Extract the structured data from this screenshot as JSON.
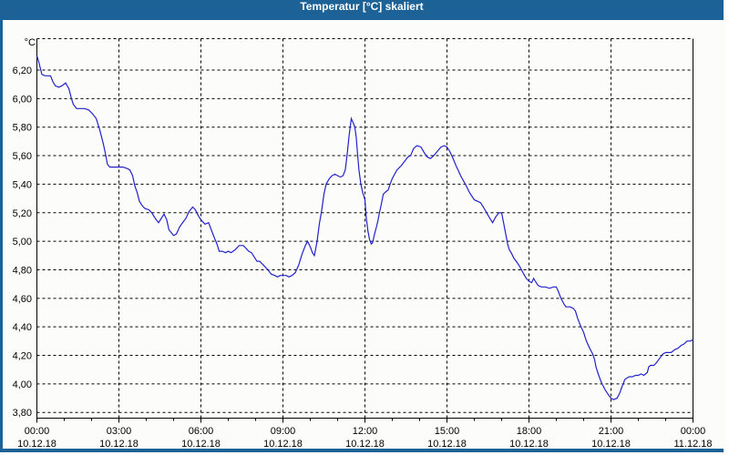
{
  "window": {
    "title": "Temperatur [°C] skaliert",
    "colors": {
      "title_bar": "#1d6296",
      "title_text": "#ffffff",
      "frame": "#1d6296",
      "content_bg": "#fcfdfa"
    }
  },
  "chart_data": {
    "type": "line",
    "title": "Temperatur [°C] skaliert",
    "ylabel": "°C",
    "xlabel": "",
    "grid": "dashed, horizontal and vertical, black",
    "legend": "none",
    "line_color": "#2222cc",
    "grid_color": "#000000",
    "axis_color": "#000000",
    "text_color": "#000000",
    "xlim": [
      0,
      24
    ],
    "ylim": [
      3.76,
      6.42
    ],
    "minor_x_tick_every_hours": 1,
    "y_ticks": [
      {
        "label": "6,20",
        "value": 6.2
      },
      {
        "label": "6,00",
        "value": 6.0
      },
      {
        "label": "5,80",
        "value": 5.8
      },
      {
        "label": "5,60",
        "value": 5.6
      },
      {
        "label": "5,40",
        "value": 5.4
      },
      {
        "label": "5,20",
        "value": 5.2
      },
      {
        "label": "5,00",
        "value": 5.0
      },
      {
        "label": "4,80",
        "value": 4.8
      },
      {
        "label": "4,60",
        "value": 4.6
      },
      {
        "label": "4,40",
        "value": 4.4
      },
      {
        "label": "4,20",
        "value": 4.2
      },
      {
        "label": "4,00",
        "value": 4.0
      },
      {
        "label": "3,80",
        "value": 3.8
      }
    ],
    "x_ticks": [
      {
        "hour": 0,
        "time": "00:00",
        "date": "10.12.18"
      },
      {
        "hour": 3,
        "time": "03:00",
        "date": "10.12.18"
      },
      {
        "hour": 6,
        "time": "06:00",
        "date": "10.12.18"
      },
      {
        "hour": 9,
        "time": "09:00",
        "date": "10.12.18"
      },
      {
        "hour": 12,
        "time": "12:00",
        "date": "10.12.18"
      },
      {
        "hour": 15,
        "time": "15:00",
        "date": "10.12.18"
      },
      {
        "hour": 18,
        "time": "18:00",
        "date": "10.12.18"
      },
      {
        "hour": 21,
        "time": "21:00",
        "date": "10.12.18"
      },
      {
        "hour": 24,
        "time": "00:00",
        "date": "11.12.18"
      }
    ],
    "series": [
      {
        "name": "Temperatur [°C]",
        "color": "#2222cc",
        "points": [
          [
            0,
            6.3
          ],
          [
            0.05,
            6.27
          ],
          [
            0.13,
            6.21
          ],
          [
            0.18,
            6.17
          ],
          [
            0.3,
            6.16
          ],
          [
            0.5,
            6.16
          ],
          [
            0.58,
            6.12
          ],
          [
            0.67,
            6.09
          ],
          [
            0.8,
            6.08
          ],
          [
            0.92,
            6.09
          ],
          [
            1.05,
            6.11
          ],
          [
            1.17,
            6.07
          ],
          [
            1.25,
            6.01
          ],
          [
            1.33,
            5.96
          ],
          [
            1.45,
            5.93
          ],
          [
            1.6,
            5.93
          ],
          [
            1.75,
            5.93
          ],
          [
            1.9,
            5.92
          ],
          [
            2.05,
            5.89
          ],
          [
            2.17,
            5.86
          ],
          [
            2.3,
            5.78
          ],
          [
            2.42,
            5.69
          ],
          [
            2.5,
            5.62
          ],
          [
            2.58,
            5.54
          ],
          [
            2.67,
            5.52
          ],
          [
            2.8,
            5.52
          ],
          [
            3,
            5.52
          ],
          [
            3.15,
            5.52
          ],
          [
            3.3,
            5.51
          ],
          [
            3.4,
            5.5
          ],
          [
            3.5,
            5.46
          ],
          [
            3.58,
            5.39
          ],
          [
            3.67,
            5.34
          ],
          [
            3.75,
            5.28
          ],
          [
            3.85,
            5.25
          ],
          [
            3.95,
            5.23
          ],
          [
            4.1,
            5.22
          ],
          [
            4.2,
            5.2
          ],
          [
            4.33,
            5.16
          ],
          [
            4.45,
            5.13
          ],
          [
            4.55,
            5.16
          ],
          [
            4.65,
            5.19
          ],
          [
            4.75,
            5.15
          ],
          [
            4.83,
            5.08
          ],
          [
            4.92,
            5.06
          ],
          [
            5,
            5.04
          ],
          [
            5.1,
            5.05
          ],
          [
            5.22,
            5.1
          ],
          [
            5.33,
            5.13
          ],
          [
            5.45,
            5.16
          ],
          [
            5.57,
            5.21
          ],
          [
            5.7,
            5.24
          ],
          [
            5.8,
            5.22
          ],
          [
            5.9,
            5.18
          ],
          [
            6,
            5.15
          ],
          [
            6.15,
            5.12
          ],
          [
            6.28,
            5.13
          ],
          [
            6.4,
            5.07
          ],
          [
            6.5,
            5.02
          ],
          [
            6.57,
            4.99
          ],
          [
            6.67,
            4.93
          ],
          [
            6.78,
            4.93
          ],
          [
            6.9,
            4.92
          ],
          [
            7,
            4.93
          ],
          [
            7.1,
            4.92
          ],
          [
            7.25,
            4.94
          ],
          [
            7.4,
            4.97
          ],
          [
            7.55,
            4.97
          ],
          [
            7.65,
            4.95
          ],
          [
            7.75,
            4.93
          ],
          [
            7.85,
            4.92
          ],
          [
            7.95,
            4.89
          ],
          [
            8.05,
            4.86
          ],
          [
            8.15,
            4.86
          ],
          [
            8.25,
            4.84
          ],
          [
            8.35,
            4.82
          ],
          [
            8.45,
            4.8
          ],
          [
            8.57,
            4.77
          ],
          [
            8.7,
            4.76
          ],
          [
            8.8,
            4.75
          ],
          [
            8.9,
            4.76
          ],
          [
            9,
            4.76
          ],
          [
            9.12,
            4.76
          ],
          [
            9.22,
            4.75
          ],
          [
            9.33,
            4.76
          ],
          [
            9.45,
            4.78
          ],
          [
            9.57,
            4.83
          ],
          [
            9.7,
            4.91
          ],
          [
            9.82,
            4.97
          ],
          [
            9.9,
            5
          ],
          [
            10,
            4.96
          ],
          [
            10.08,
            4.92
          ],
          [
            10.15,
            4.9
          ],
          [
            10.25,
            5
          ],
          [
            10.33,
            5.12
          ],
          [
            10.42,
            5.22
          ],
          [
            10.5,
            5.33
          ],
          [
            10.58,
            5.4
          ],
          [
            10.7,
            5.44
          ],
          [
            10.8,
            5.46
          ],
          [
            10.9,
            5.47
          ],
          [
            11,
            5.46
          ],
          [
            11.1,
            5.45
          ],
          [
            11.2,
            5.46
          ],
          [
            11.28,
            5.5
          ],
          [
            11.35,
            5.61
          ],
          [
            11.42,
            5.74
          ],
          [
            11.5,
            5.86
          ],
          [
            11.57,
            5.83
          ],
          [
            11.63,
            5.8
          ],
          [
            11.68,
            5.73
          ],
          [
            11.73,
            5.61
          ],
          [
            11.78,
            5.5
          ],
          [
            11.85,
            5.4
          ],
          [
            11.92,
            5.34
          ],
          [
            12,
            5.29
          ],
          [
            12.05,
            5.16
          ],
          [
            12.11,
            5.07
          ],
          [
            12.17,
            5.01
          ],
          [
            12.23,
            4.98
          ],
          [
            12.28,
            4.99
          ],
          [
            12.35,
            5.05
          ],
          [
            12.42,
            5.1
          ],
          [
            12.47,
            5.14
          ],
          [
            12.53,
            5.2
          ],
          [
            12.6,
            5.26
          ],
          [
            12.67,
            5.33
          ],
          [
            12.78,
            5.35
          ],
          [
            12.85,
            5.36
          ],
          [
            12.92,
            5.4
          ],
          [
            13,
            5.44
          ],
          [
            13.17,
            5.5
          ],
          [
            13.33,
            5.53
          ],
          [
            13.45,
            5.56
          ],
          [
            13.57,
            5.59
          ],
          [
            13.67,
            5.6
          ],
          [
            13.78,
            5.65
          ],
          [
            13.9,
            5.67
          ],
          [
            14.05,
            5.66
          ],
          [
            14.17,
            5.62
          ],
          [
            14.28,
            5.59
          ],
          [
            14.4,
            5.58
          ],
          [
            14.52,
            5.6
          ],
          [
            14.65,
            5.63
          ],
          [
            14.78,
            5.66
          ],
          [
            14.9,
            5.67
          ],
          [
            15,
            5.66
          ],
          [
            15.1,
            5.63
          ],
          [
            15.2,
            5.59
          ],
          [
            15.33,
            5.53
          ],
          [
            15.5,
            5.46
          ],
          [
            15.67,
            5.4
          ],
          [
            15.83,
            5.34
          ],
          [
            16,
            5.29
          ],
          [
            16.12,
            5.28
          ],
          [
            16.23,
            5.27
          ],
          [
            16.33,
            5.24
          ],
          [
            16.45,
            5.2
          ],
          [
            16.57,
            5.16
          ],
          [
            16.67,
            5.13
          ],
          [
            16.78,
            5.17
          ],
          [
            16.9,
            5.2
          ],
          [
            17,
            5.2
          ],
          [
            17.08,
            5.12
          ],
          [
            17.15,
            5.05
          ],
          [
            17.22,
            4.98
          ],
          [
            17.28,
            4.94
          ],
          [
            17.35,
            4.92
          ],
          [
            17.45,
            4.88
          ],
          [
            17.57,
            4.85
          ],
          [
            17.67,
            4.82
          ],
          [
            17.78,
            4.78
          ],
          [
            17.9,
            4.74
          ],
          [
            18,
            4.72
          ],
          [
            18.1,
            4.71
          ],
          [
            18.17,
            4.74
          ],
          [
            18.23,
            4.72
          ],
          [
            18.33,
            4.69
          ],
          [
            18.45,
            4.68
          ],
          [
            18.6,
            4.68
          ],
          [
            18.75,
            4.67
          ],
          [
            18.9,
            4.68
          ],
          [
            19,
            4.68
          ],
          [
            19.07,
            4.65
          ],
          [
            19.17,
            4.6
          ],
          [
            19.28,
            4.56
          ],
          [
            19.35,
            4.54
          ],
          [
            19.5,
            4.54
          ],
          [
            19.62,
            4.53
          ],
          [
            19.7,
            4.51
          ],
          [
            19.78,
            4.46
          ],
          [
            19.88,
            4.41
          ],
          [
            20,
            4.36
          ],
          [
            20.1,
            4.3
          ],
          [
            20.22,
            4.25
          ],
          [
            20.33,
            4.21
          ],
          [
            20.4,
            4.17
          ],
          [
            20.45,
            4.12
          ],
          [
            20.55,
            4.06
          ],
          [
            20.67,
            4
          ],
          [
            20.73,
            3.98
          ],
          [
            20.78,
            3.96
          ],
          [
            20.85,
            3.94
          ],
          [
            20.92,
            3.92
          ],
          [
            21,
            3.9
          ],
          [
            21.1,
            3.89
          ],
          [
            21.22,
            3.9
          ],
          [
            21.33,
            3.94
          ],
          [
            21.4,
            3.98
          ],
          [
            21.45,
            4
          ],
          [
            21.5,
            4.03
          ],
          [
            21.57,
            4.04
          ],
          [
            21.67,
            4.05
          ],
          [
            21.78,
            4.05
          ],
          [
            21.9,
            4.06
          ],
          [
            22,
            4.06
          ],
          [
            22.1,
            4.07
          ],
          [
            22.2,
            4.06
          ],
          [
            22.33,
            4.08
          ],
          [
            22.38,
            4.12
          ],
          [
            22.45,
            4.13
          ],
          [
            22.57,
            4.13
          ],
          [
            22.67,
            4.15
          ],
          [
            22.78,
            4.18
          ],
          [
            22.9,
            4.21
          ],
          [
            23,
            4.22
          ],
          [
            23.2,
            4.22
          ],
          [
            23.33,
            4.24
          ],
          [
            23.45,
            4.25
          ],
          [
            23.57,
            4.27
          ],
          [
            23.67,
            4.28
          ],
          [
            23.78,
            4.3
          ],
          [
            23.9,
            4.3
          ],
          [
            24,
            4.31
          ]
        ]
      }
    ]
  }
}
